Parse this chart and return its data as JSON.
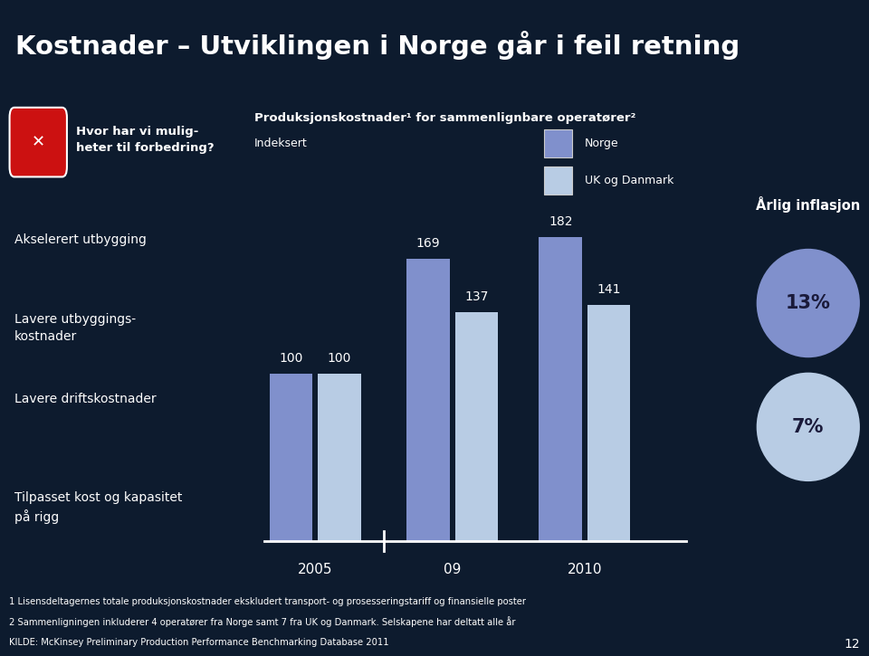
{
  "title": "Kostnader – Utviklingen i Norge går i feil retning",
  "chart_title_line1": "Produksjonskostnader¹ for sammenlignbare operatører²",
  "chart_title_line2": "Indeksert",
  "bg_dark": "#0d1b2e",
  "bg_medium": "#1e3f72",
  "bg_left": "#2a5298",
  "bar_color_norge": "#8090cc",
  "bar_color_uk": "#b8cce4",
  "bar_groups": [
    {
      "year": "2005",
      "norge": 100,
      "uk": 100
    },
    {
      "year": "09",
      "norge": 169,
      "uk": 137
    },
    {
      "year": "2010",
      "norge": 182,
      "uk": 141
    }
  ],
  "legend_norge": "Norge",
  "legend_uk": "UK og Danmark",
  "inflation_label": "Årlig inflasjon",
  "inflation_norge": "13%",
  "inflation_uk": "7%",
  "left_panel_items": [
    "Akselerert utbygging",
    "Lavere utbyggings-\nkostnader",
    "Lavere driftskostnader",
    "Tilpasset kost og kapasitet\npå rigg"
  ],
  "footnote1": "1 Lisensdeltagernes totale produksjonskostnader ekskludert transport- og prosesseringstariff og finansielle poster",
  "footnote2": "2 Sammenligningen inkluderer 4 operatører fra Norge samt 7 fra UK og Danmark. Selskapene har deltatt alle år",
  "footnote3": "KILDE: McKinsey Preliminary Production Performance Benchmarking Database 2011",
  "page_number": "12"
}
